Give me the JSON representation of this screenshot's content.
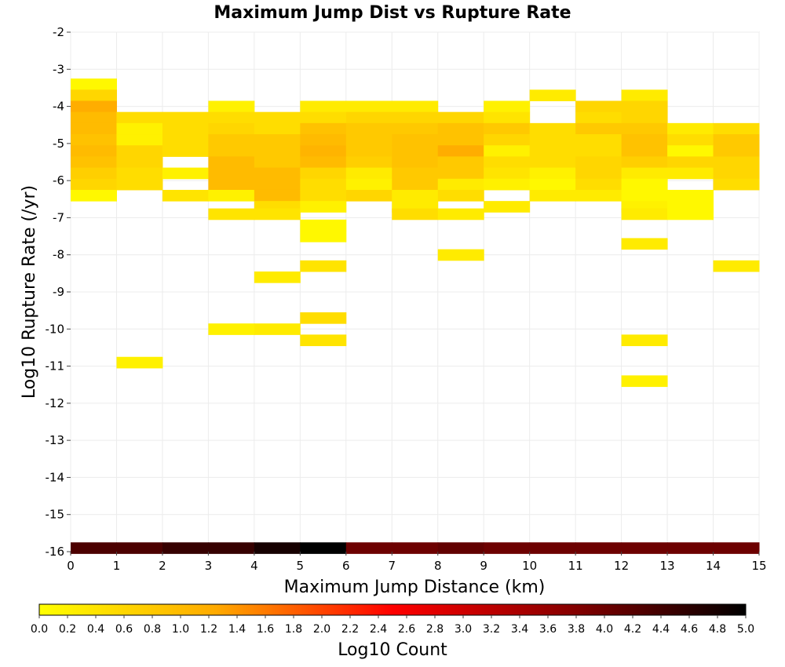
{
  "chart_data": {
    "type": "heatmap",
    "title": "Maximum Jump Dist vs Rupture Rate",
    "xlabel": "Maximum Jump Distance (km)",
    "ylabel": "Log10 Rupture Rate (/yr)",
    "xlim": [
      0,
      15
    ],
    "ylim": [
      -16,
      -2
    ],
    "x_ticks": [
      "0",
      "1",
      "2",
      "3",
      "4",
      "5",
      "6",
      "7",
      "8",
      "9",
      "10",
      "11",
      "12",
      "13",
      "14",
      "15"
    ],
    "y_ticks": [
      "-2",
      "-3",
      "-4",
      "-5",
      "-6",
      "-7",
      "-8",
      "-9",
      "-10",
      "-11",
      "-12",
      "-13",
      "-14",
      "-15",
      "-16"
    ],
    "x_bin_width": 1,
    "y_bin_height": 0.3,
    "grid": true,
    "colorbar": {
      "label": "Log10 Count",
      "range": [
        0,
        5
      ],
      "ticks": [
        "0.0",
        "0.2",
        "0.4",
        "0.6",
        "0.8",
        "1.0",
        "1.2",
        "1.4",
        "1.6",
        "1.8",
        "2.0",
        "2.2",
        "2.4",
        "2.6",
        "2.8",
        "3.0",
        "3.2",
        "3.4",
        "3.6",
        "3.8",
        "4.0",
        "4.2",
        "4.4",
        "4.6",
        "4.8",
        "5.0"
      ],
      "colors": [
        "#ffff00",
        "#ffaa00",
        "#ff0000",
        "#880000",
        "#000000"
      ]
    },
    "cells": [
      [
        0.5,
        -3.4,
        0.1
      ],
      [
        0.5,
        -3.7,
        0.6
      ],
      [
        0.5,
        -4.0,
        1.2
      ],
      [
        0.5,
        -4.3,
        1.0
      ],
      [
        0.5,
        -4.6,
        1.0
      ],
      [
        0.5,
        -4.9,
        0.9
      ],
      [
        0.5,
        -5.2,
        1.0
      ],
      [
        0.5,
        -5.5,
        0.9
      ],
      [
        0.5,
        -5.8,
        0.7
      ],
      [
        0.5,
        -6.1,
        0.6
      ],
      [
        0.5,
        -6.4,
        0.1
      ],
      [
        1.5,
        -4.3,
        0.5
      ],
      [
        1.5,
        -4.6,
        0.2
      ],
      [
        1.5,
        -4.9,
        0.2
      ],
      [
        1.5,
        -5.2,
        0.6
      ],
      [
        1.5,
        -5.5,
        0.6
      ],
      [
        1.5,
        -5.8,
        0.5
      ],
      [
        1.5,
        -6.1,
        0.5
      ],
      [
        1.5,
        -10.9,
        0.2
      ],
      [
        2.5,
        -4.3,
        0.5
      ],
      [
        2.5,
        -4.6,
        0.5
      ],
      [
        2.5,
        -4.9,
        0.5
      ],
      [
        2.5,
        -5.2,
        0.5
      ],
      [
        2.5,
        -5.8,
        0.2
      ],
      [
        2.5,
        -6.4,
        0.4
      ],
      [
        3.5,
        -4.0,
        0.2
      ],
      [
        3.5,
        -4.3,
        0.5
      ],
      [
        3.5,
        -4.6,
        0.6
      ],
      [
        3.5,
        -4.9,
        0.8
      ],
      [
        3.5,
        -5.2,
        0.8
      ],
      [
        3.5,
        -5.5,
        1.0
      ],
      [
        3.5,
        -5.8,
        1.0
      ],
      [
        3.5,
        -6.1,
        1.0
      ],
      [
        3.5,
        -6.4,
        0.2
      ],
      [
        3.5,
        -6.9,
        0.4
      ],
      [
        3.5,
        -10.0,
        0.2
      ],
      [
        4.5,
        -4.3,
        0.5
      ],
      [
        4.5,
        -4.6,
        0.5
      ],
      [
        4.5,
        -4.9,
        0.8
      ],
      [
        4.5,
        -5.2,
        0.8
      ],
      [
        4.5,
        -5.5,
        0.8
      ],
      [
        4.5,
        -5.8,
        1.0
      ],
      [
        4.5,
        -6.1,
        1.0
      ],
      [
        4.5,
        -6.4,
        1.0
      ],
      [
        4.5,
        -6.7,
        0.5
      ],
      [
        4.5,
        -6.9,
        0.4
      ],
      [
        4.5,
        -8.6,
        0.3
      ],
      [
        4.5,
        -10.0,
        0.3
      ],
      [
        5.5,
        -4.0,
        0.3
      ],
      [
        5.5,
        -4.3,
        0.5
      ],
      [
        5.5,
        -4.6,
        0.9
      ],
      [
        5.5,
        -4.9,
        1.0
      ],
      [
        5.5,
        -5.2,
        1.1
      ],
      [
        5.5,
        -5.5,
        1.0
      ],
      [
        5.5,
        -5.8,
        0.6
      ],
      [
        5.5,
        -6.1,
        0.5
      ],
      [
        5.5,
        -6.4,
        0.5
      ],
      [
        5.5,
        -6.7,
        0.2
      ],
      [
        5.5,
        -7.2,
        0.1
      ],
      [
        5.5,
        -7.5,
        0.1
      ],
      [
        5.5,
        -8.3,
        0.4
      ],
      [
        5.5,
        -9.7,
        0.5
      ],
      [
        5.5,
        -10.3,
        0.4
      ],
      [
        6.5,
        -4.0,
        0.3
      ],
      [
        6.5,
        -4.3,
        0.6
      ],
      [
        6.5,
        -4.6,
        0.8
      ],
      [
        6.5,
        -4.9,
        0.8
      ],
      [
        6.5,
        -5.2,
        0.8
      ],
      [
        6.5,
        -5.5,
        0.7
      ],
      [
        6.5,
        -5.8,
        0.3
      ],
      [
        6.5,
        -6.1,
        0.2
      ],
      [
        6.5,
        -6.4,
        0.6
      ],
      [
        7.5,
        -4.0,
        0.3
      ],
      [
        7.5,
        -4.3,
        0.6
      ],
      [
        7.5,
        -4.6,
        0.8
      ],
      [
        7.5,
        -4.9,
        0.9
      ],
      [
        7.5,
        -5.2,
        0.9
      ],
      [
        7.5,
        -5.5,
        0.9
      ],
      [
        7.5,
        -5.8,
        0.8
      ],
      [
        7.5,
        -6.1,
        0.8
      ],
      [
        7.5,
        -6.4,
        0.3
      ],
      [
        7.5,
        -6.7,
        0.3
      ],
      [
        7.5,
        -6.9,
        0.5
      ],
      [
        8.5,
        -4.3,
        0.6
      ],
      [
        8.5,
        -4.6,
        0.9
      ],
      [
        8.5,
        -4.9,
        0.9
      ],
      [
        8.5,
        -5.2,
        1.2
      ],
      [
        8.5,
        -5.5,
        0.8
      ],
      [
        8.5,
        -5.8,
        0.8
      ],
      [
        8.5,
        -6.1,
        0.3
      ],
      [
        8.5,
        -6.4,
        0.5
      ],
      [
        8.5,
        -6.9,
        0.3
      ],
      [
        8.5,
        -8.0,
        0.3
      ],
      [
        9.5,
        -4.0,
        0.2
      ],
      [
        9.5,
        -4.3,
        0.4
      ],
      [
        9.5,
        -4.6,
        0.8
      ],
      [
        9.5,
        -4.9,
        0.6
      ],
      [
        9.5,
        -5.2,
        0.2
      ],
      [
        9.5,
        -5.5,
        0.5
      ],
      [
        9.5,
        -5.8,
        0.4
      ],
      [
        9.5,
        -6.1,
        0.2
      ],
      [
        9.5,
        -6.7,
        0.3
      ],
      [
        10.5,
        -3.7,
        0.3
      ],
      [
        10.5,
        -4.6,
        0.5
      ],
      [
        10.5,
        -4.9,
        0.5
      ],
      [
        10.5,
        -5.2,
        0.5
      ],
      [
        10.5,
        -5.5,
        0.5
      ],
      [
        10.5,
        -5.8,
        0.2
      ],
      [
        10.5,
        -6.1,
        0.1
      ],
      [
        10.5,
        -6.4,
        0.3
      ],
      [
        11.5,
        -4.0,
        0.6
      ],
      [
        11.5,
        -4.3,
        0.5
      ],
      [
        11.5,
        -4.6,
        0.8
      ],
      [
        11.5,
        -4.9,
        0.5
      ],
      [
        11.5,
        -5.2,
        0.5
      ],
      [
        11.5,
        -5.5,
        0.6
      ],
      [
        11.5,
        -5.8,
        0.6
      ],
      [
        11.5,
        -6.1,
        0.5
      ],
      [
        11.5,
        -6.4,
        0.3
      ],
      [
        12.5,
        -3.7,
        0.3
      ],
      [
        12.5,
        -4.0,
        0.6
      ],
      [
        12.5,
        -4.3,
        0.6
      ],
      [
        12.5,
        -4.6,
        0.8
      ],
      [
        12.5,
        -4.9,
        0.9
      ],
      [
        12.5,
        -5.2,
        0.9
      ],
      [
        12.5,
        -5.5,
        0.7
      ],
      [
        12.5,
        -5.8,
        0.3
      ],
      [
        12.5,
        -6.1,
        0.1
      ],
      [
        12.5,
        -6.4,
        0.1
      ],
      [
        12.5,
        -6.7,
        0.2
      ],
      [
        12.5,
        -6.9,
        0.3
      ],
      [
        12.5,
        -7.7,
        0.3
      ],
      [
        12.5,
        -10.3,
        0.3
      ],
      [
        12.5,
        -11.4,
        0.2
      ],
      [
        13.5,
        -4.6,
        0.3
      ],
      [
        13.5,
        -4.9,
        0.5
      ],
      [
        13.5,
        -5.2,
        0.1
      ],
      [
        13.5,
        -5.5,
        0.6
      ],
      [
        13.5,
        -5.8,
        0.3
      ],
      [
        13.5,
        -6.4,
        0.1
      ],
      [
        13.5,
        -6.7,
        0.1
      ],
      [
        13.5,
        -6.9,
        0.1
      ],
      [
        14.5,
        -4.6,
        0.5
      ],
      [
        14.5,
        -4.9,
        0.8
      ],
      [
        14.5,
        -5.2,
        0.8
      ],
      [
        14.5,
        -5.5,
        0.6
      ],
      [
        14.5,
        -5.8,
        0.6
      ],
      [
        14.5,
        -6.1,
        0.5
      ],
      [
        14.5,
        -8.3,
        0.3
      ],
      [
        0.5,
        -15.9,
        4.3
      ],
      [
        1.5,
        -15.9,
        4.3
      ],
      [
        2.5,
        -15.9,
        4.5
      ],
      [
        3.5,
        -15.9,
        4.5
      ],
      [
        4.5,
        -15.9,
        4.8
      ],
      [
        5.5,
        -15.9,
        5.0
      ],
      [
        6.5,
        -15.9,
        4.0
      ],
      [
        7.5,
        -15.9,
        4.0
      ],
      [
        8.5,
        -15.9,
        4.1
      ],
      [
        9.5,
        -15.9,
        4.0
      ],
      [
        10.5,
        -15.9,
        4.0
      ],
      [
        11.5,
        -15.9,
        4.0
      ],
      [
        12.5,
        -15.9,
        4.0
      ],
      [
        13.5,
        -15.9,
        4.0
      ],
      [
        14.5,
        -15.9,
        4.0
      ]
    ]
  }
}
